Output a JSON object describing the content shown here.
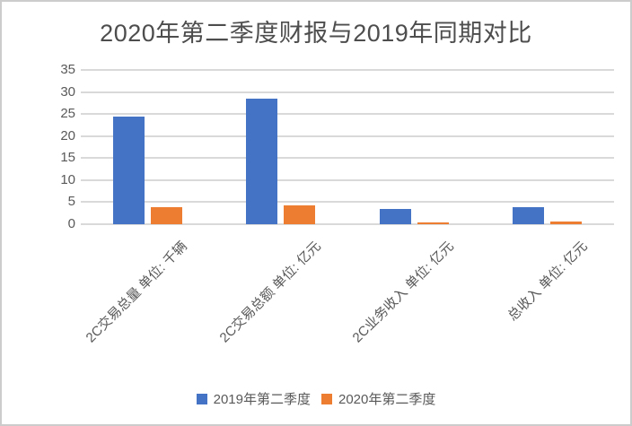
{
  "chart_data": {
    "type": "bar",
    "title": "2020年第二季度财报与2019年同期对比",
    "categories": [
      "2C交易总量 单位: 千辆",
      "2C交易总额 单位: 亿元",
      "2C业务收入 单位: 亿元",
      "总收入 单位: 亿元"
    ],
    "series": [
      {
        "name": "2019年第二季度",
        "color": "#4472C4",
        "values": [
          24.4,
          28.4,
          3.5,
          3.9
        ]
      },
      {
        "name": "2020年第二季度",
        "color": "#ED7D31",
        "values": [
          3.9,
          4.3,
          0.5,
          0.7
        ]
      }
    ],
    "y_axis": {
      "min": 0,
      "max": 35,
      "step": 5,
      "ticks": [
        "35",
        "30",
        "25",
        "20",
        "15",
        "10",
        "5",
        "0"
      ]
    },
    "grid": true,
    "gridline_color": "#d9d9d9",
    "legend_position": "bottom",
    "text_color": "#595959",
    "title_color": "#4d4d4d",
    "xlabel": "",
    "ylabel": ""
  }
}
